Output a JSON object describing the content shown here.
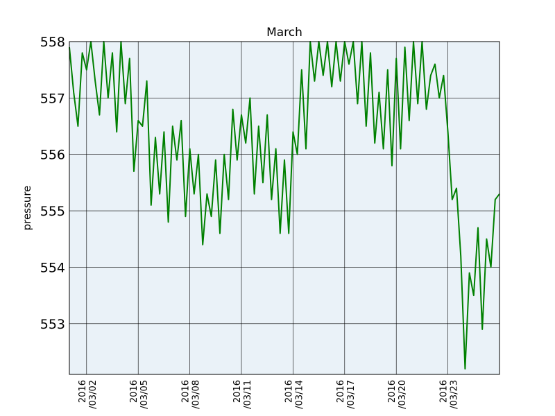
{
  "chart_data": {
    "type": "line",
    "title": "March",
    "xlabel": "",
    "ylabel": "pressure",
    "ylim": [
      552.1,
      558.0
    ],
    "xlim": [
      "2016-03-01",
      "2016-03-26"
    ],
    "yticks": [
      553,
      554,
      555,
      556,
      557,
      558
    ],
    "xticks": [
      {
        "date": "2016-03-02",
        "line1": "2016",
        "line2": "/03/02"
      },
      {
        "date": "2016-03-05",
        "line1": "2016",
        "line2": "/03/05"
      },
      {
        "date": "2016-03-08",
        "line1": "2016",
        "line2": "/03/08"
      },
      {
        "date": "2016-03-11",
        "line1": "2016",
        "line2": "/03/11"
      },
      {
        "date": "2016-03-14",
        "line1": "2016",
        "line2": "/03/14"
      },
      {
        "date": "2016-03-17",
        "line1": "2016",
        "line2": "/03/17"
      },
      {
        "date": "2016-03-20",
        "line1": "2016",
        "line2": "/03/20"
      },
      {
        "date": "2016-03-23",
        "line1": "2016",
        "line2": "/03/23"
      }
    ],
    "grid": true,
    "background": "#eaf2f8",
    "series": [
      {
        "color": "#008000",
        "x": [
          "2016-03-01 00:00",
          "2016-03-01 06:00",
          "2016-03-01 12:00",
          "2016-03-01 18:00",
          "2016-03-02 00:00",
          "2016-03-02 06:00",
          "2016-03-02 12:00",
          "2016-03-02 18:00",
          "2016-03-03 00:00",
          "2016-03-03 06:00",
          "2016-03-03 12:00",
          "2016-03-03 18:00",
          "2016-03-04 00:00",
          "2016-03-04 06:00",
          "2016-03-04 12:00",
          "2016-03-04 18:00",
          "2016-03-05 00:00",
          "2016-03-05 06:00",
          "2016-03-05 12:00",
          "2016-03-05 18:00",
          "2016-03-06 00:00",
          "2016-03-06 06:00",
          "2016-03-06 12:00",
          "2016-03-06 18:00",
          "2016-03-07 00:00",
          "2016-03-07 06:00",
          "2016-03-07 12:00",
          "2016-03-07 18:00",
          "2016-03-08 00:00",
          "2016-03-08 06:00",
          "2016-03-08 12:00",
          "2016-03-08 18:00",
          "2016-03-09 00:00",
          "2016-03-09 06:00",
          "2016-03-09 12:00",
          "2016-03-09 18:00",
          "2016-03-10 00:00",
          "2016-03-10 06:00",
          "2016-03-10 12:00",
          "2016-03-10 18:00",
          "2016-03-11 00:00",
          "2016-03-11 06:00",
          "2016-03-11 12:00",
          "2016-03-11 18:00",
          "2016-03-12 00:00",
          "2016-03-12 06:00",
          "2016-03-12 12:00",
          "2016-03-12 18:00",
          "2016-03-13 00:00",
          "2016-03-13 06:00",
          "2016-03-13 12:00",
          "2016-03-13 18:00",
          "2016-03-14 00:00",
          "2016-03-14 06:00",
          "2016-03-14 12:00",
          "2016-03-14 18:00",
          "2016-03-15 00:00",
          "2016-03-15 06:00",
          "2016-03-15 12:00",
          "2016-03-15 18:00",
          "2016-03-16 00:00",
          "2016-03-16 06:00",
          "2016-03-16 12:00",
          "2016-03-16 18:00",
          "2016-03-17 00:00",
          "2016-03-17 06:00",
          "2016-03-17 12:00",
          "2016-03-17 18:00",
          "2016-03-18 00:00",
          "2016-03-18 06:00",
          "2016-03-18 12:00",
          "2016-03-18 18:00",
          "2016-03-19 00:00",
          "2016-03-19 06:00",
          "2016-03-19 12:00",
          "2016-03-19 18:00",
          "2016-03-20 00:00",
          "2016-03-20 06:00",
          "2016-03-20 12:00",
          "2016-03-20 18:00",
          "2016-03-21 00:00",
          "2016-03-21 06:00",
          "2016-03-21 12:00",
          "2016-03-21 18:00",
          "2016-03-22 00:00",
          "2016-03-22 06:00",
          "2016-03-22 12:00",
          "2016-03-22 18:00",
          "2016-03-23 00:00",
          "2016-03-23 06:00",
          "2016-03-23 12:00",
          "2016-03-23 18:00",
          "2016-03-24 00:00",
          "2016-03-24 06:00",
          "2016-03-24 12:00",
          "2016-03-24 18:00",
          "2016-03-25 00:00",
          "2016-03-25 06:00",
          "2016-03-25 12:00",
          "2016-03-25 18:00",
          "2016-03-26 00:00"
        ],
        "y": [
          557.9,
          557.1,
          556.5,
          557.8,
          557.5,
          558.0,
          557.3,
          556.7,
          558.0,
          557.0,
          557.8,
          556.4,
          558.0,
          556.9,
          557.7,
          555.7,
          556.6,
          556.5,
          557.3,
          555.1,
          556.3,
          555.3,
          556.4,
          554.8,
          556.5,
          555.9,
          556.6,
          554.9,
          556.1,
          555.3,
          556.0,
          554.4,
          555.3,
          554.9,
          555.9,
          554.6,
          556.0,
          555.2,
          556.8,
          555.9,
          556.7,
          556.2,
          557.0,
          555.3,
          556.5,
          555.5,
          556.7,
          555.2,
          556.1,
          554.6,
          555.9,
          554.6,
          556.4,
          556.0,
          557.5,
          556.1,
          558.0,
          557.3,
          558.0,
          557.4,
          558.0,
          557.2,
          558.0,
          557.3,
          558.0,
          557.6,
          558.0,
          556.9,
          558.0,
          556.5,
          557.8,
          556.2,
          557.1,
          556.1,
          557.5,
          555.8,
          557.7,
          556.1,
          557.9,
          556.6,
          558.0,
          556.9,
          558.0,
          556.8,
          557.4,
          557.6,
          557.0,
          557.4,
          556.4,
          555.2,
          555.4,
          554.2,
          552.2,
          553.9,
          553.5,
          554.7,
          552.9,
          554.5,
          554.0,
          555.2,
          555.3
        ]
      }
    ]
  }
}
